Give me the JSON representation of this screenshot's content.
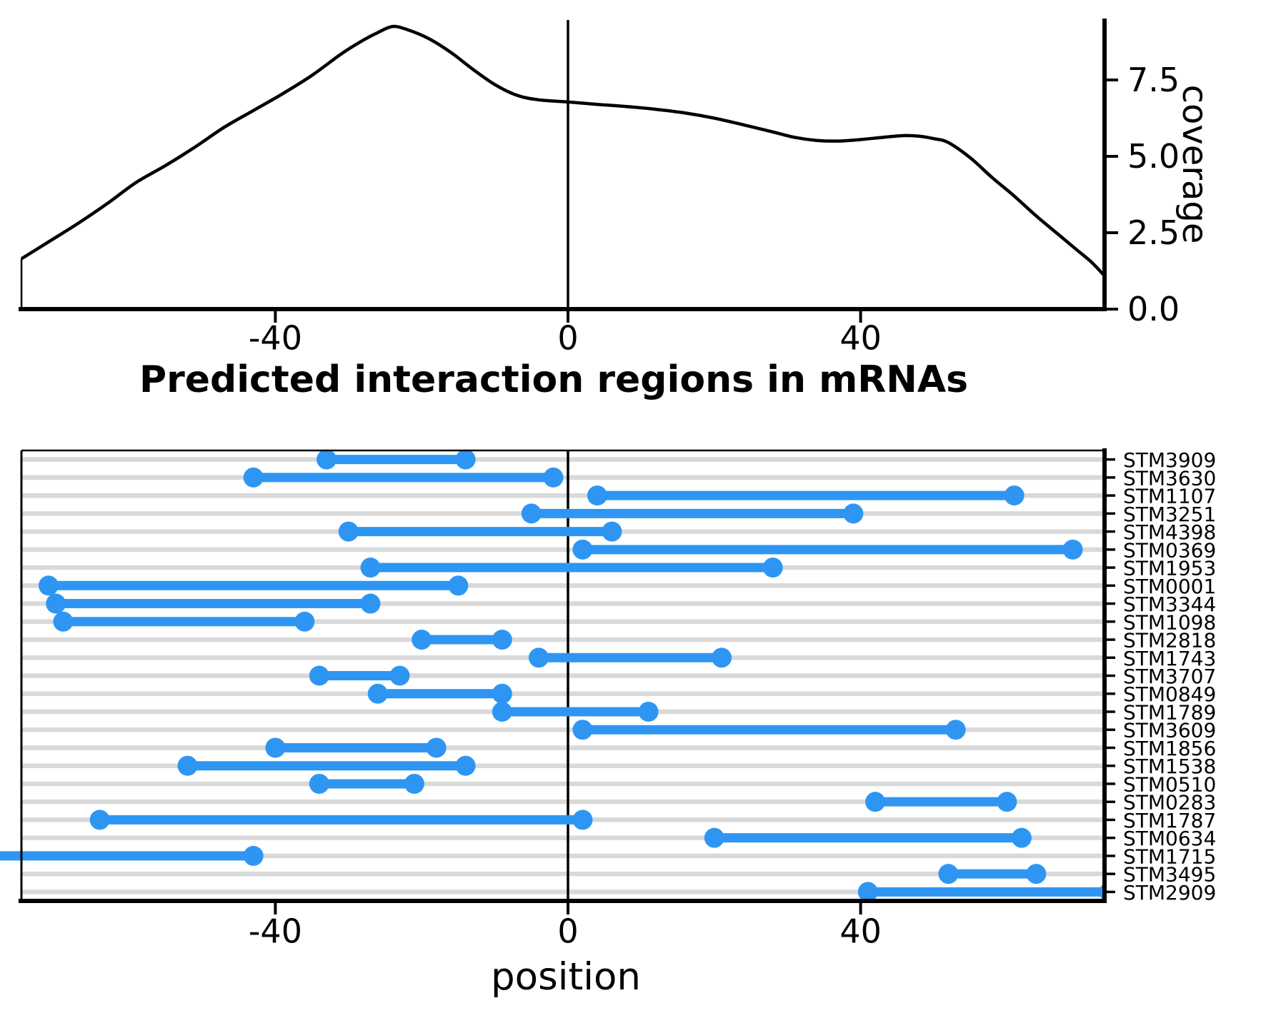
{
  "figure": {
    "colors": {
      "segment_blue": "#2E96F2",
      "grid_gray": "#D9D9D9",
      "axis_black": "#000000",
      "background": "#FFFFFF"
    }
  },
  "chart_data": [
    {
      "id": "coverage-density",
      "type": "line",
      "ylabel": "coverage",
      "xlabel": "",
      "xlim": [
        -74.7,
        73.3
      ],
      "ylim": [
        0,
        9.5
      ],
      "grid": false,
      "zero_line": true,
      "legend": "none",
      "xticks": {
        "values": [
          -40,
          0,
          40
        ],
        "labels": [
          "-40",
          "0",
          "40"
        ]
      },
      "yticks": {
        "values": [
          0,
          2.5,
          5,
          7.5
        ],
        "labels": [
          "0.0",
          "2.5",
          "5.0",
          "7.5"
        ]
      },
      "curve": [
        [
          -74.7,
          1.65
        ],
        [
          -71,
          2.2
        ],
        [
          -67,
          2.8
        ],
        [
          -63,
          3.45
        ],
        [
          -59,
          4.15
        ],
        [
          -55,
          4.7
        ],
        [
          -51,
          5.3
        ],
        [
          -47,
          5.95
        ],
        [
          -43,
          6.5
        ],
        [
          -39,
          7.05
        ],
        [
          -35,
          7.65
        ],
        [
          -31,
          8.35
        ],
        [
          -28,
          8.8
        ],
        [
          -26,
          9.05
        ],
        [
          -24,
          9.25
        ],
        [
          -22,
          9.15
        ],
        [
          -19,
          8.85
        ],
        [
          -16,
          8.4
        ],
        [
          -13,
          7.85
        ],
        [
          -10,
          7.35
        ],
        [
          -7,
          7.0
        ],
        [
          -4,
          6.85
        ],
        [
          0,
          6.78
        ],
        [
          4,
          6.7
        ],
        [
          8,
          6.63
        ],
        [
          12,
          6.54
        ],
        [
          16,
          6.42
        ],
        [
          20,
          6.25
        ],
        [
          24,
          6.03
        ],
        [
          28,
          5.8
        ],
        [
          31,
          5.62
        ],
        [
          34,
          5.52
        ],
        [
          37,
          5.5
        ],
        [
          40,
          5.55
        ],
        [
          43,
          5.62
        ],
        [
          46,
          5.68
        ],
        [
          48,
          5.66
        ],
        [
          50,
          5.58
        ],
        [
          52,
          5.45
        ],
        [
          55,
          4.95
        ],
        [
          58,
          4.3
        ],
        [
          61,
          3.7
        ],
        [
          64,
          3.05
        ],
        [
          67,
          2.45
        ],
        [
          69.5,
          1.95
        ],
        [
          71.5,
          1.55
        ],
        [
          73.3,
          1.1
        ]
      ]
    },
    {
      "id": "interaction-regions",
      "type": "range",
      "title": "Predicted interaction regions in mRNAs",
      "xlabel": "position",
      "xlim": [
        -74.7,
        73.3
      ],
      "grid": true,
      "zero_line": true,
      "xticks": {
        "values": [
          -40,
          0,
          40
        ],
        "labels": [
          "-40",
          "0",
          "40"
        ]
      },
      "genes": [
        {
          "name": "STM3909",
          "start": -33,
          "end": -14
        },
        {
          "name": "STM3630",
          "start": -43,
          "end": -2
        },
        {
          "name": "STM1107",
          "start": 4,
          "end": 61
        },
        {
          "name": "STM3251",
          "start": -5,
          "end": 39
        },
        {
          "name": "STM4398",
          "start": -30,
          "end": 6
        },
        {
          "name": "STM0369",
          "start": 2,
          "end": 69
        },
        {
          "name": "STM1953",
          "start": -27,
          "end": 28
        },
        {
          "name": "STM0001",
          "start": -71,
          "end": -15
        },
        {
          "name": "STM3344",
          "start": -70,
          "end": -27
        },
        {
          "name": "STM1098",
          "start": -69,
          "end": -36
        },
        {
          "name": "STM2818",
          "start": -20,
          "end": -9
        },
        {
          "name": "STM1743",
          "start": -4,
          "end": 21
        },
        {
          "name": "STM3707",
          "start": -34,
          "end": -23
        },
        {
          "name": "STM0849",
          "start": -26,
          "end": -9
        },
        {
          "name": "STM1789",
          "start": -9,
          "end": 11
        },
        {
          "name": "STM3609",
          "start": 2,
          "end": 53
        },
        {
          "name": "STM1856",
          "start": -40,
          "end": -18
        },
        {
          "name": "STM1538",
          "start": -52,
          "end": -14
        },
        {
          "name": "STM0510",
          "start": -34,
          "end": -21
        },
        {
          "name": "STM0283",
          "start": 42,
          "end": 60
        },
        {
          "name": "STM1787",
          "start": -64,
          "end": 2
        },
        {
          "name": "STM0634",
          "start": 20,
          "end": 62
        },
        {
          "name": "STM1715",
          "start": -80,
          "end": -43,
          "clipped": "left"
        },
        {
          "name": "STM3495",
          "start": 52,
          "end": 64
        },
        {
          "name": "STM2909",
          "start": 41,
          "end": 74,
          "clipped": "right"
        }
      ]
    }
  ]
}
